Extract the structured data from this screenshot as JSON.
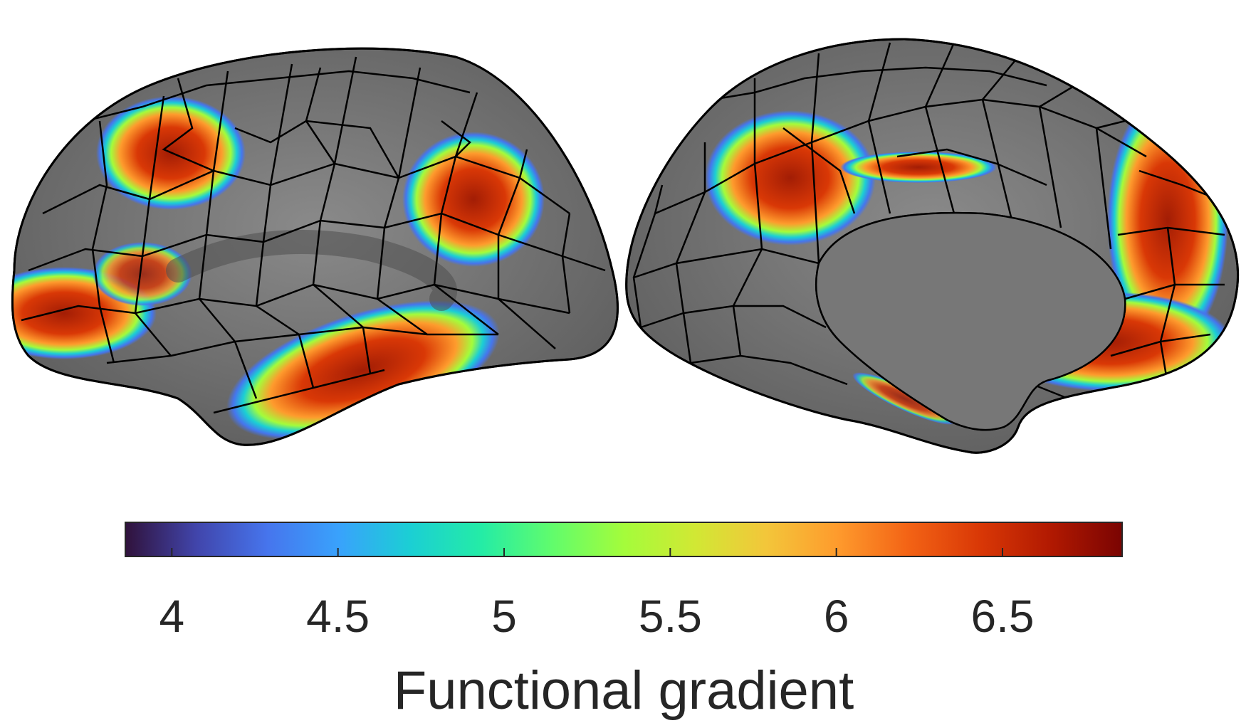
{
  "figure": {
    "colorbar": {
      "label": "Functional gradient",
      "range": [
        3.86,
        6.86
      ],
      "ticks": [
        {
          "value": 4,
          "label": "4"
        },
        {
          "value": 4.5,
          "label": "4.5"
        },
        {
          "value": 5,
          "label": "5"
        },
        {
          "value": 5.5,
          "label": "5.5"
        },
        {
          "value": 6,
          "label": "6"
        },
        {
          "value": 6.5,
          "label": "6.5"
        }
      ],
      "colormap": [
        "#30123b",
        "#4145ab",
        "#4675ed",
        "#39a2fc",
        "#1bcfd4",
        "#24eca6",
        "#61fc6c",
        "#a4fc3b",
        "#d1e834",
        "#f3c63a",
        "#fe9b2d",
        "#f36315",
        "#d93806",
        "#b11901",
        "#7a0402"
      ]
    },
    "views": [
      {
        "name": "lateral"
      },
      {
        "name": "medial"
      }
    ],
    "colors": {
      "surface": "#7a7a7a",
      "border": "#000000",
      "text": "#262626"
    }
  }
}
